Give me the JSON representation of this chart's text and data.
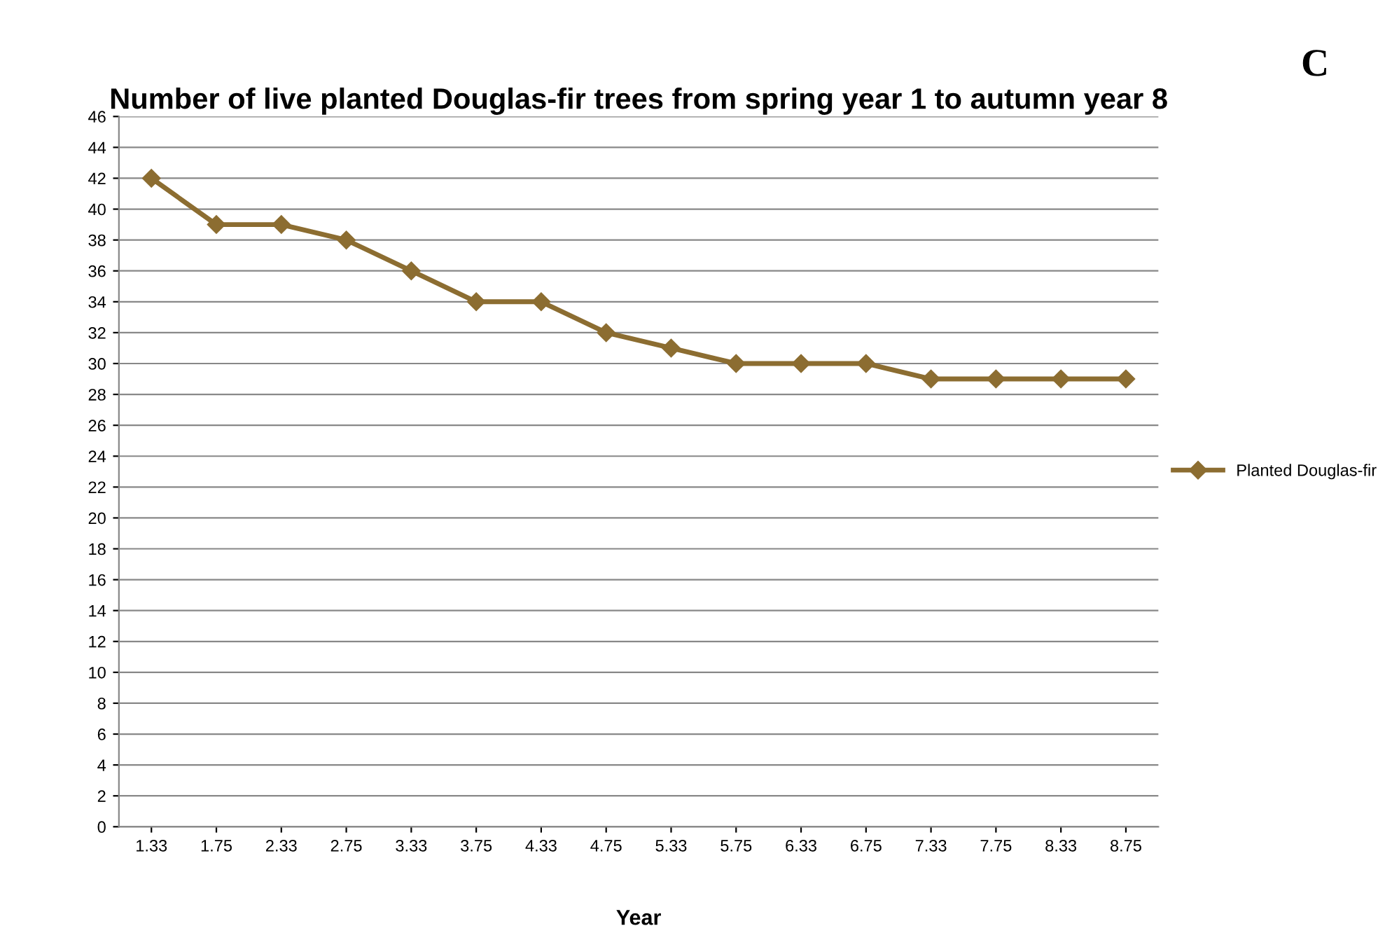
{
  "chart_data": {
    "type": "line",
    "title": "Number of live planted Douglas-fir trees from spring year 1 to autumn year 8",
    "xlabel": "Year",
    "categories": [
      "1.33",
      "1.75",
      "2.33",
      "2.75",
      "3.33",
      "3.75",
      "4.33",
      "4.75",
      "5.33",
      "5.75",
      "6.33",
      "6.75",
      "7.33",
      "7.75",
      "8.33",
      "8.75"
    ],
    "series": [
      {
        "name": "Planted Douglas-fir",
        "color": "#8c6d31",
        "values": [
          42,
          39,
          39,
          38,
          36,
          34,
          34,
          32,
          31,
          30,
          30,
          30,
          29,
          29,
          29,
          29
        ]
      }
    ],
    "ylim": [
      0,
      46
    ],
    "yticks": [
      0,
      2,
      4,
      6,
      8,
      10,
      12,
      14,
      16,
      18,
      20,
      22,
      24,
      26,
      28,
      30,
      32,
      34,
      36,
      38,
      40,
      42,
      44,
      46
    ],
    "grid": "y",
    "legend": "right",
    "marker": "diamond",
    "line_style": "solid",
    "annotations": [
      "C"
    ]
  }
}
